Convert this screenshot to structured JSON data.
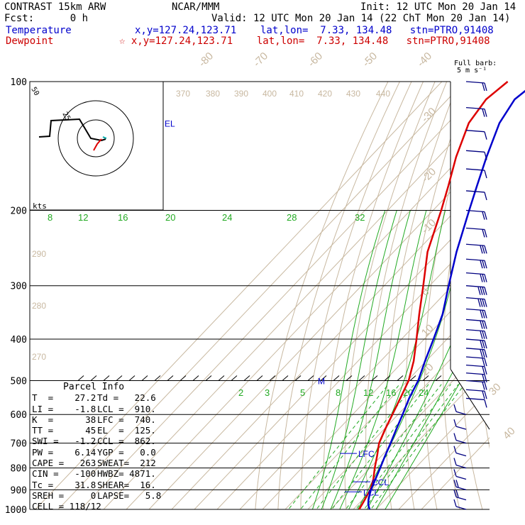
{
  "header": {
    "model": "CONTRAST 15km ARW",
    "org": "NCAR/MMM",
    "init": "Init: 12 UTC Mon 20 Jan 14",
    "fcst": "Fcst:      0 h",
    "valid": "Valid: 12 UTC Mon 20 Jan 14 (22 ChT Mon 20 Jan 14)",
    "temp_label": "Temperature",
    "temp_loc": "x,y=127.24,123.71    lat,lon=  7.33, 134.48   stn=PTRO,91408",
    "dew_label": "Dewpoint",
    "dew_loc": "☆ x,y=127.24,123.71    lat,lon=  7.33, 134.48   stn=PTRO,91408",
    "barb_title": "Full barb:",
    "barb_unit": "5 m s⁻¹"
  },
  "parcel_info": {
    "title": "Parcel Info",
    "rows": [
      [
        "T  =    27.2",
        "Td =   22.6"
      ],
      [
        "LI =    -1.8",
        "LCL =  910."
      ],
      [
        "K  =      38",
        "LFC =  740."
      ],
      [
        "TT =      45",
        "EL  =  125."
      ],
      [
        "SWI =   -1.2",
        "CCL =  862."
      ],
      [
        "PW =    6.14",
        "YGP =   0.0"
      ],
      [
        "CAPE =   263",
        "SWEAT=  212"
      ],
      [
        "CIN =   -100",
        "HWBZ= 4871."
      ],
      [
        "Tc =    31.8",
        "SHEAR=  16."
      ],
      [
        "SREH =     0",
        "LAPSE=   5.8"
      ],
      [
        "CELL = 118/12",
        ""
      ]
    ]
  },
  "hodograph": {
    "unit": "kts",
    "ring_labels": [
      "50",
      "25"
    ]
  },
  "level_labels": {
    "el": "EL",
    "lfc": "LFC",
    "ccl": "CCL",
    "lcl": "LCL",
    "m": "M"
  },
  "colors": {
    "temperature": "#0000cc",
    "dewpoint": "#dd0000",
    "isotherm": "#c8b8a0",
    "theta": "#c8b8a0",
    "mixing_ratio": "#22aa22",
    "moist_adiabat": "#22aa22",
    "barb": "#000080"
  },
  "chart_data": {
    "type": "line",
    "title": "CONTRAST 15km ARW",
    "xlabel": "",
    "ylabel": "",
    "pressure_ticks": [
      100,
      200,
      300,
      400,
      500,
      600,
      700,
      800,
      900,
      1000
    ],
    "isotherm_labels": [
      "-80",
      "-70",
      "-60",
      "-50",
      "-40",
      "-30",
      "-20",
      "-10",
      "0",
      "10",
      "20",
      "30",
      "40"
    ],
    "theta_labels": [
      "370",
      "380",
      "390",
      "400",
      "410",
      "420",
      "430",
      "440",
      "290",
      "280",
      "270"
    ],
    "mixing_ratio_labels_top": [
      "8",
      "12",
      "16",
      "20",
      "24",
      "28",
      "32"
    ],
    "mixing_ratio_labels_bottom": [
      "2",
      "3",
      "5",
      "8",
      "12",
      "16",
      "20",
      "24"
    ],
    "series": [
      {
        "name": "Temperature",
        "pressure": [
          1000,
          975,
          950,
          925,
          900,
          850,
          800,
          750,
          700,
          650,
          600,
          550,
          500,
          450,
          400,
          350,
          300,
          250,
          200,
          175,
          150,
          125,
          110,
          100
        ],
        "temperature_c": [
          27.2,
          24.6,
          22.7,
          21.1,
          19.6,
          17.1,
          14.5,
          11.6,
          8.7,
          5.4,
          2.0,
          -1.9,
          -5.3,
          -10.5,
          -15.9,
          -22.3,
          -31.6,
          -42.3,
          -54.1,
          -61.0,
          -68.8,
          -77.3,
          -80.5,
          -78.2
        ]
      },
      {
        "name": "Dewpoint",
        "pressure": [
          1000,
          975,
          950,
          925,
          900,
          850,
          800,
          750,
          700,
          650,
          600,
          550,
          500,
          450,
          400,
          350,
          300,
          250,
          200,
          175,
          150,
          125,
          110,
          100
        ],
        "temperature_c": [
          22.6,
          21.8,
          21.0,
          20.1,
          19.3,
          16.2,
          12.1,
          8.1,
          3.6,
          0.5,
          -2.5,
          -5.8,
          -9.5,
          -15.5,
          -23.4,
          -32.6,
          -42.8,
          -55.1,
          -66.4,
          -73.6,
          -82.2,
          -90.8,
          -93.1,
          -91.0
        ]
      }
    ],
    "wind_barbs": {
      "pressure": [
        100,
        115,
        130,
        145,
        160,
        180,
        200,
        220,
        240,
        260,
        280,
        300,
        320,
        340,
        360,
        380,
        400,
        420,
        440,
        460,
        480,
        500,
        525,
        550,
        600,
        650,
        700,
        750,
        800,
        850,
        900,
        950,
        1000
      ],
      "speed_kts": [
        15,
        15,
        10,
        10,
        10,
        10,
        15,
        20,
        25,
        30,
        30,
        35,
        35,
        30,
        30,
        25,
        25,
        25,
        20,
        20,
        20,
        20,
        15,
        10,
        10,
        10,
        10,
        10,
        10,
        10,
        15,
        15,
        10
      ]
    }
  }
}
